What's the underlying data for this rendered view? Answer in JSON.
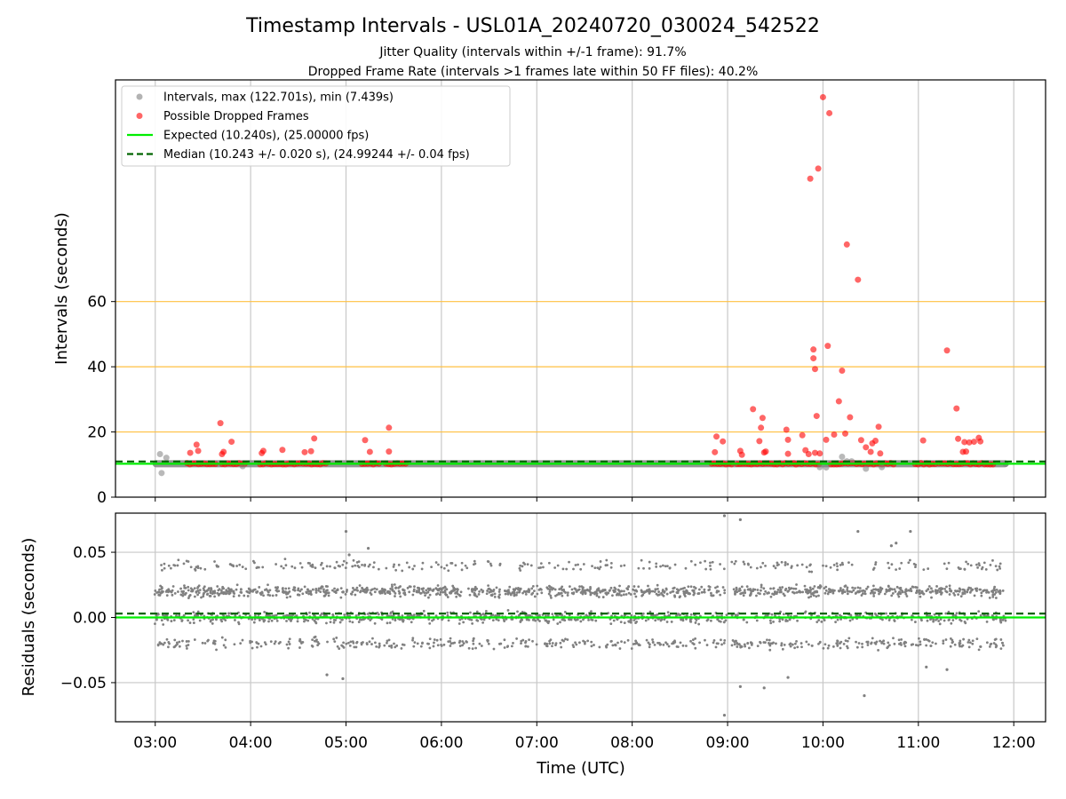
{
  "figure": {
    "title": "Timestamp Intervals - USL01A_20240720_030024_542522",
    "subtitle_1": "Jitter Quality (intervals within +/-1 frame): 91.7%",
    "subtitle_2": "Dropped Frame Rate (intervals >1 frames late within 50 FF files): 40.2%",
    "xlabel": "Time (UTC)",
    "x_tick_labels": [
      "03:00",
      "04:00",
      "05:00",
      "06:00",
      "07:00",
      "08:00",
      "09:00",
      "10:00",
      "11:00",
      "12:00"
    ]
  },
  "colors": {
    "intervals": "#808080",
    "dropped": "#ff0000",
    "expected": "#00ee00",
    "median": "#006400",
    "threshold_lines": "#ffc040",
    "grid": "#c8c8c8"
  },
  "chart_data": [
    {
      "type": "scatter",
      "panel": "intervals",
      "ylabel": "Intervals (seconds)",
      "xlim": [
        "02:35",
        "12:20"
      ],
      "ylim": [
        0,
        128
      ],
      "y_ticks": [
        0,
        20,
        40,
        60
      ],
      "grid": "x",
      "legend_position": "top-left",
      "threshold_lines": [
        20,
        40,
        60
      ],
      "expected_interval": 10.24,
      "median_interval": 10.243,
      "legend": [
        {
          "label": "Intervals, max (122.701s), min (7.439s)",
          "marker": "circle",
          "color": "#808080"
        },
        {
          "label": "Possible Dropped Frames",
          "marker": "circle",
          "color": "#ff0000"
        },
        {
          "label": "Expected (10.240s), (25.00000 fps)",
          "marker": "solid-line",
          "color": "#00ee00"
        },
        {
          "label": "Median (10.243 +/- 0.020 s), (24.99244 +/- 0.04 fps)",
          "marker": "dashed-line",
          "color": "#006400"
        }
      ],
      "series": [
        {
          "name": "Intervals, max (122.701s), min (7.439s)",
          "band": {
            "x": [
              "03:00",
              "11:55"
            ],
            "y": 10.24
          },
          "points": [
            {
              "x": "03:03",
              "y": 13.2
            },
            {
              "x": "03:04",
              "y": 7.4
            },
            {
              "x": "03:07",
              "y": 12.1
            },
            {
              "x": "03:55",
              "y": 9.5
            },
            {
              "x": "09:58",
              "y": 9.2
            },
            {
              "x": "10:02",
              "y": 9.1
            },
            {
              "x": "10:12",
              "y": 12.4
            },
            {
              "x": "10:15",
              "y": 11.0
            },
            {
              "x": "10:18",
              "y": 11.0
            },
            {
              "x": "10:27",
              "y": 8.7
            },
            {
              "x": "10:37",
              "y": 9.2
            },
            {
              "x": "11:55",
              "y": 10.2
            }
          ]
        },
        {
          "name": "Possible Dropped Frames",
          "clusters": [
            {
              "x": [
                "03:20",
                "03:38"
              ],
              "y": 10.24
            },
            {
              "x": [
                "03:42",
                "03:58"
              ],
              "y": 10.24
            },
            {
              "x": [
                "04:06",
                "04:32"
              ],
              "y": 10.24
            },
            {
              "x": [
                "04:33",
                "04:48"
              ],
              "y": 10.24
            },
            {
              "x": [
                "05:10",
                "05:22"
              ],
              "y": 10.24
            },
            {
              "x": [
                "05:25",
                "05:38"
              ],
              "y": 10.24
            },
            {
              "x": [
                "08:50",
                "09:04"
              ],
              "y": 10.24
            },
            {
              "x": [
                "09:06",
                "09:42"
              ],
              "y": 10.24
            },
            {
              "x": [
                "09:43",
                "09:58"
              ],
              "y": 10.24
            },
            {
              "x": [
                "10:05",
                "10:45"
              ],
              "y": 10.24
            },
            {
              "x": [
                "10:58",
                "11:12"
              ],
              "y": 10.24
            },
            {
              "x": [
                "11:13",
                "11:48"
              ],
              "y": 10.24
            }
          ],
          "points": [
            {
              "x": "03:22",
              "y": 13.6
            },
            {
              "x": "03:26",
              "y": 16.1
            },
            {
              "x": "03:27",
              "y": 14.2
            },
            {
              "x": "03:41",
              "y": 22.7
            },
            {
              "x": "03:42",
              "y": 13.2
            },
            {
              "x": "03:43",
              "y": 13.9
            },
            {
              "x": "03:48",
              "y": 17.0
            },
            {
              "x": "04:07",
              "y": 13.5
            },
            {
              "x": "04:08",
              "y": 14.2
            },
            {
              "x": "04:20",
              "y": 14.5
            },
            {
              "x": "04:34",
              "y": 13.8
            },
            {
              "x": "04:38",
              "y": 14.1
            },
            {
              "x": "04:40",
              "y": 18.0
            },
            {
              "x": "05:12",
              "y": 17.5
            },
            {
              "x": "05:15",
              "y": 13.9
            },
            {
              "x": "05:27",
              "y": 14.0
            },
            {
              "x": "05:27",
              "y": 21.3
            },
            {
              "x": "08:53",
              "y": 18.6
            },
            {
              "x": "08:57",
              "y": 17.1
            },
            {
              "x": "08:52",
              "y": 13.8
            },
            {
              "x": "09:08",
              "y": 14.2
            },
            {
              "x": "09:09",
              "y": 13.0
            },
            {
              "x": "09:16",
              "y": 27.0
            },
            {
              "x": "09:20",
              "y": 17.2
            },
            {
              "x": "09:21",
              "y": 21.3
            },
            {
              "x": "09:22",
              "y": 24.3
            },
            {
              "x": "09:23",
              "y": 13.7
            },
            {
              "x": "09:24",
              "y": 14.0
            },
            {
              "x": "09:37",
              "y": 20.7
            },
            {
              "x": "09:38",
              "y": 17.6
            },
            {
              "x": "09:38",
              "y": 13.3
            },
            {
              "x": "09:47",
              "y": 19.0
            },
            {
              "x": "09:49",
              "y": 14.4
            },
            {
              "x": "09:51",
              "y": 13.2
            },
            {
              "x": "09:52",
              "y": 97.7
            },
            {
              "x": "09:54",
              "y": 45.3
            },
            {
              "x": "09:54",
              "y": 42.6
            },
            {
              "x": "09:55",
              "y": 39.3
            },
            {
              "x": "09:55",
              "y": 13.6
            },
            {
              "x": "09:56",
              "y": 24.9
            },
            {
              "x": "09:57",
              "y": 100.8
            },
            {
              "x": "09:58",
              "y": 13.4
            },
            {
              "x": "10:00",
              "y": 122.7
            },
            {
              "x": "10:02",
              "y": 17.6
            },
            {
              "x": "10:03",
              "y": 46.4
            },
            {
              "x": "10:04",
              "y": 117.8
            },
            {
              "x": "10:07",
              "y": 19.2
            },
            {
              "x": "10:10",
              "y": 29.4
            },
            {
              "x": "10:12",
              "y": 38.8
            },
            {
              "x": "10:14",
              "y": 19.5
            },
            {
              "x": "10:15",
              "y": 77.5
            },
            {
              "x": "10:17",
              "y": 24.5
            },
            {
              "x": "10:22",
              "y": 66.7
            },
            {
              "x": "10:24",
              "y": 17.5
            },
            {
              "x": "10:27",
              "y": 15.3
            },
            {
              "x": "10:30",
              "y": 13.9
            },
            {
              "x": "10:31",
              "y": 16.5
            },
            {
              "x": "10:33",
              "y": 17.3
            },
            {
              "x": "10:35",
              "y": 21.6
            },
            {
              "x": "10:36",
              "y": 13.4
            },
            {
              "x": "11:03",
              "y": 17.4
            },
            {
              "x": "11:18",
              "y": 45.0
            },
            {
              "x": "11:24",
              "y": 27.2
            },
            {
              "x": "11:25",
              "y": 17.9
            },
            {
              "x": "11:28",
              "y": 13.9
            },
            {
              "x": "11:29",
              "y": 16.9
            },
            {
              "x": "11:32",
              "y": 16.8
            },
            {
              "x": "11:35",
              "y": 17.0
            },
            {
              "x": "11:38",
              "y": 18.2
            },
            {
              "x": "11:39",
              "y": 17.1
            },
            {
              "x": "11:30",
              "y": 14.0
            }
          ]
        }
      ]
    },
    {
      "type": "scatter",
      "panel": "residuals",
      "ylabel": "Residuals (seconds)",
      "xlim": [
        "02:35",
        "12:20"
      ],
      "ylim": [
        -0.08,
        0.08
      ],
      "y_ticks": [
        -0.05,
        0.0,
        0.05
      ],
      "y_tick_labels": [
        "−0.05",
        "0.00",
        "0.05"
      ],
      "grid": "both",
      "zero_line": 0.0,
      "median_offset": 0.003,
      "series": [
        {
          "name": "Residuals",
          "x_range": [
            "03:00",
            "11:55"
          ],
          "levels": [
            -0.02,
            0.0,
            0.02,
            0.04
          ],
          "outliers": [
            {
              "x": "05:00",
              "y": 0.066
            },
            {
              "x": "05:02",
              "y": 0.048
            },
            {
              "x": "05:14",
              "y": 0.053
            },
            {
              "x": "04:58",
              "y": -0.047
            },
            {
              "x": "04:48",
              "y": -0.044
            },
            {
              "x": "08:58",
              "y": 0.078
            },
            {
              "x": "09:08",
              "y": 0.075
            },
            {
              "x": "08:58",
              "y": -0.075
            },
            {
              "x": "09:08",
              "y": -0.053
            },
            {
              "x": "09:23",
              "y": -0.054
            },
            {
              "x": "09:38",
              "y": -0.046
            },
            {
              "x": "10:22",
              "y": 0.066
            },
            {
              "x": "10:26",
              "y": -0.06
            },
            {
              "x": "10:43",
              "y": 0.055
            },
            {
              "x": "10:46",
              "y": 0.057
            },
            {
              "x": "10:55",
              "y": 0.066
            },
            {
              "x": "11:18",
              "y": -0.04
            },
            {
              "x": "11:05",
              "y": -0.038
            }
          ]
        }
      ]
    }
  ]
}
